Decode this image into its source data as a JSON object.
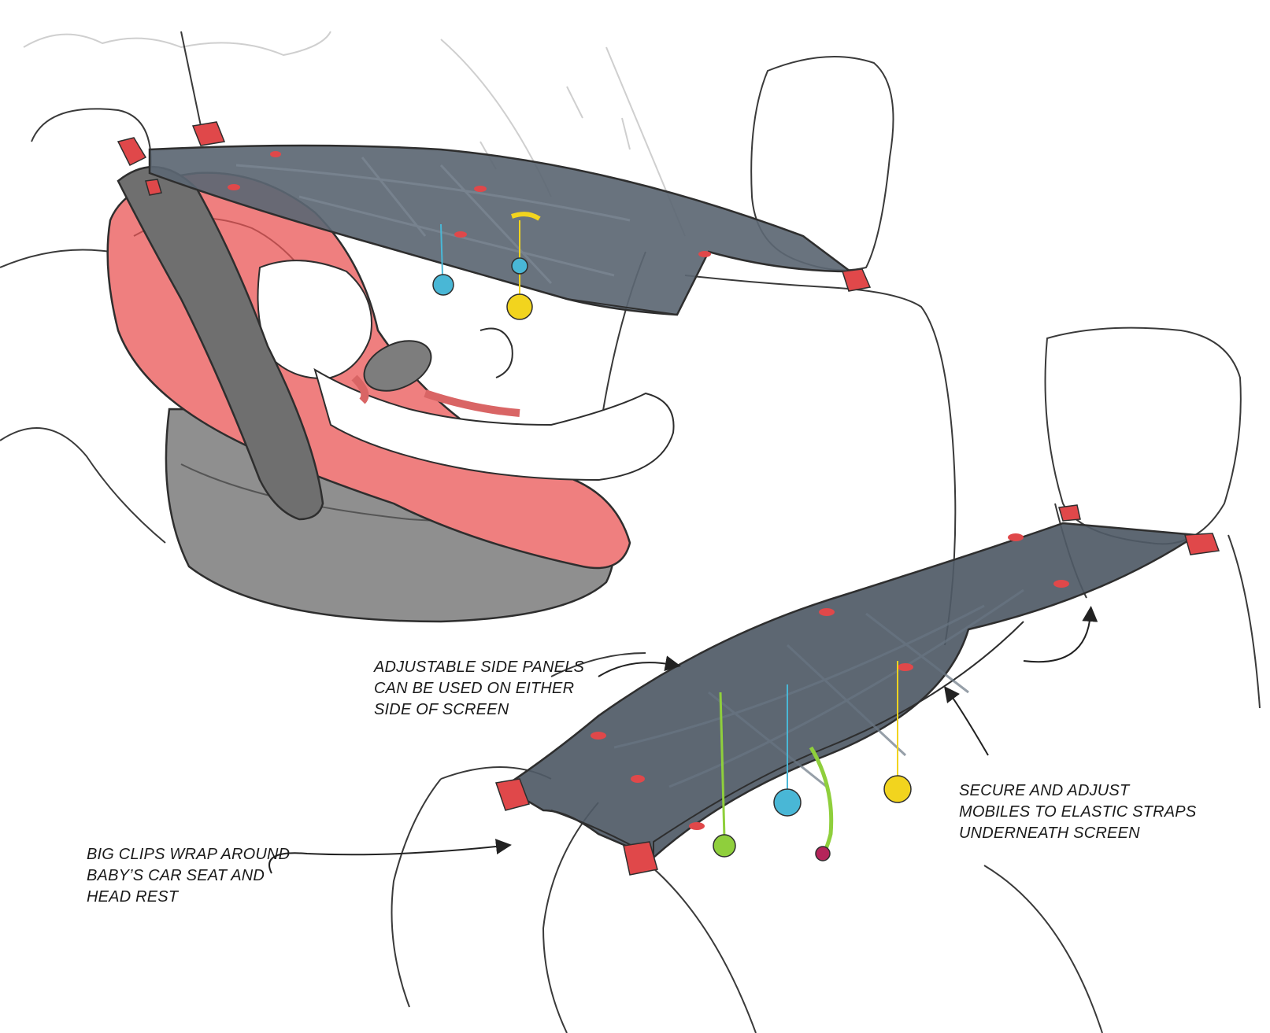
{
  "annotations": {
    "side_panels": {
      "lines": [
        "ADJUSTABLE SIDE PANELS",
        "CAN BE USED ON EITHER",
        "SIDE OF SCREEN"
      ]
    },
    "mobiles": {
      "lines": [
        "SECURE AND ADJUST",
        "MOBILES TO ELASTIC STRAPS",
        "UNDERNEATH SCREEN"
      ]
    },
    "clips": {
      "lines": [
        "BIG CLIPS WRAP AROUND",
        "BABY’S CAR SEAT AND",
        "HEAD REST"
      ]
    }
  },
  "colors": {
    "screen": "#4f5a66",
    "screen_light": "#6a7683",
    "seat_red": "#ef7f7f",
    "seat_red_dark": "#d96565",
    "shell_gray": "#8d8d8d",
    "handle_gray": "#6f6f6f",
    "clip_red": "#e0484a",
    "mobile_blue": "#49b7d6",
    "mobile_yellow": "#f2d41e",
    "mobile_green": "#8fcf3c",
    "line": "#3a3a3a"
  }
}
